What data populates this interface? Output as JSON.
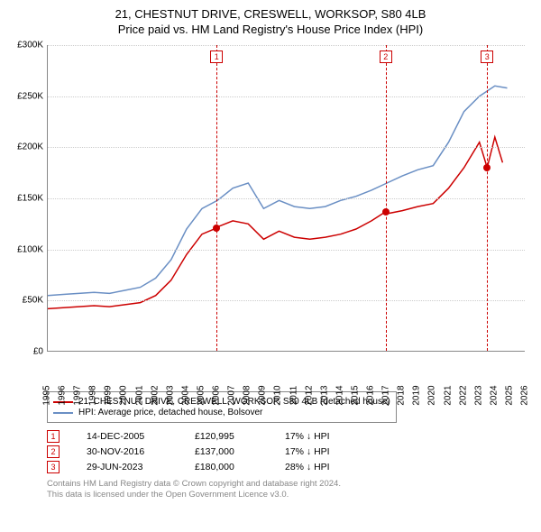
{
  "title": {
    "line1": "21, CHESTNUT DRIVE, CRESWELL, WORKSOP, S80 4LB",
    "line2": "Price paid vs. HM Land Registry's House Price Index (HPI)"
  },
  "chart": {
    "type": "line",
    "background": "#ffffff",
    "grid_color": "#cccccc",
    "axis_color": "#888888",
    "y": {
      "min": 0,
      "max": 300000,
      "step": 50000,
      "labels": [
        "£0",
        "£50K",
        "£100K",
        "£150K",
        "£200K",
        "£250K",
        "£300K"
      ]
    },
    "x": {
      "min": 1995,
      "max": 2026,
      "step": 1,
      "labels": [
        "1995",
        "1996",
        "1997",
        "1998",
        "1999",
        "2000",
        "2001",
        "2002",
        "2003",
        "2004",
        "2005",
        "2006",
        "2007",
        "2008",
        "2009",
        "2010",
        "2011",
        "2012",
        "2013",
        "2014",
        "2015",
        "2016",
        "2017",
        "2018",
        "2019",
        "2020",
        "2021",
        "2022",
        "2023",
        "2024",
        "2025",
        "2026"
      ]
    },
    "series": [
      {
        "name": "21, CHESTNUT DRIVE, CRESWELL, WORKSOP, S80 4LB (detached house)",
        "color": "#cc0000",
        "line_width": 1.5,
        "data": [
          [
            1995,
            42000
          ],
          [
            1996,
            43000
          ],
          [
            1997,
            44000
          ],
          [
            1998,
            45000
          ],
          [
            1999,
            44000
          ],
          [
            2000,
            46000
          ],
          [
            2001,
            48000
          ],
          [
            2002,
            55000
          ],
          [
            2003,
            70000
          ],
          [
            2004,
            95000
          ],
          [
            2005,
            115000
          ],
          [
            2005.95,
            120995
          ],
          [
            2006,
            122000
          ],
          [
            2007,
            128000
          ],
          [
            2008,
            125000
          ],
          [
            2009,
            110000
          ],
          [
            2010,
            118000
          ],
          [
            2011,
            112000
          ],
          [
            2012,
            110000
          ],
          [
            2013,
            112000
          ],
          [
            2014,
            115000
          ],
          [
            2015,
            120000
          ],
          [
            2016,
            128000
          ],
          [
            2016.92,
            137000
          ],
          [
            2017,
            135000
          ],
          [
            2018,
            138000
          ],
          [
            2019,
            142000
          ],
          [
            2020,
            145000
          ],
          [
            2021,
            160000
          ],
          [
            2022,
            180000
          ],
          [
            2023,
            205000
          ],
          [
            2023.5,
            180000
          ],
          [
            2024,
            210000
          ],
          [
            2024.5,
            185000
          ]
        ]
      },
      {
        "name": "HPI: Average price, detached house, Bolsover",
        "color": "#6a8fc4",
        "line_width": 1.5,
        "data": [
          [
            1995,
            55000
          ],
          [
            1996,
            56000
          ],
          [
            1997,
            57000
          ],
          [
            1998,
            58000
          ],
          [
            1999,
            57000
          ],
          [
            2000,
            60000
          ],
          [
            2001,
            63000
          ],
          [
            2002,
            72000
          ],
          [
            2003,
            90000
          ],
          [
            2004,
            120000
          ],
          [
            2005,
            140000
          ],
          [
            2006,
            148000
          ],
          [
            2007,
            160000
          ],
          [
            2008,
            165000
          ],
          [
            2009,
            140000
          ],
          [
            2010,
            148000
          ],
          [
            2011,
            142000
          ],
          [
            2012,
            140000
          ],
          [
            2013,
            142000
          ],
          [
            2014,
            148000
          ],
          [
            2015,
            152000
          ],
          [
            2016,
            158000
          ],
          [
            2017,
            165000
          ],
          [
            2018,
            172000
          ],
          [
            2019,
            178000
          ],
          [
            2020,
            182000
          ],
          [
            2021,
            205000
          ],
          [
            2022,
            235000
          ],
          [
            2023,
            250000
          ],
          [
            2024,
            260000
          ],
          [
            2024.8,
            258000
          ]
        ]
      }
    ],
    "event_lines": [
      {
        "id": "1",
        "year": 2005.95,
        "color": "#cc0000"
      },
      {
        "id": "2",
        "year": 2016.92,
        "color": "#cc0000"
      },
      {
        "id": "3",
        "year": 2023.5,
        "color": "#cc0000"
      }
    ],
    "sale_points": [
      {
        "year": 2005.95,
        "price": 120995
      },
      {
        "year": 2016.92,
        "price": 137000
      },
      {
        "year": 2023.5,
        "price": 180000
      }
    ]
  },
  "legend": {
    "items": [
      {
        "color": "#cc0000",
        "label": "21, CHESTNUT DRIVE, CRESWELL, WORKSOP, S80 4LB (detached house)"
      },
      {
        "color": "#6a8fc4",
        "label": "HPI: Average price, detached house, Bolsover"
      }
    ]
  },
  "sales": [
    {
      "id": "1",
      "date": "14-DEC-2005",
      "price": "£120,995",
      "delta": "17% ↓ HPI"
    },
    {
      "id": "2",
      "date": "30-NOV-2016",
      "price": "£137,000",
      "delta": "17% ↓ HPI"
    },
    {
      "id": "3",
      "date": "29-JUN-2023",
      "price": "£180,000",
      "delta": "28% ↓ HPI"
    }
  ],
  "footnote": {
    "line1": "Contains HM Land Registry data © Crown copyright and database right 2024.",
    "line2": "This data is licensed under the Open Government Licence v3.0."
  }
}
